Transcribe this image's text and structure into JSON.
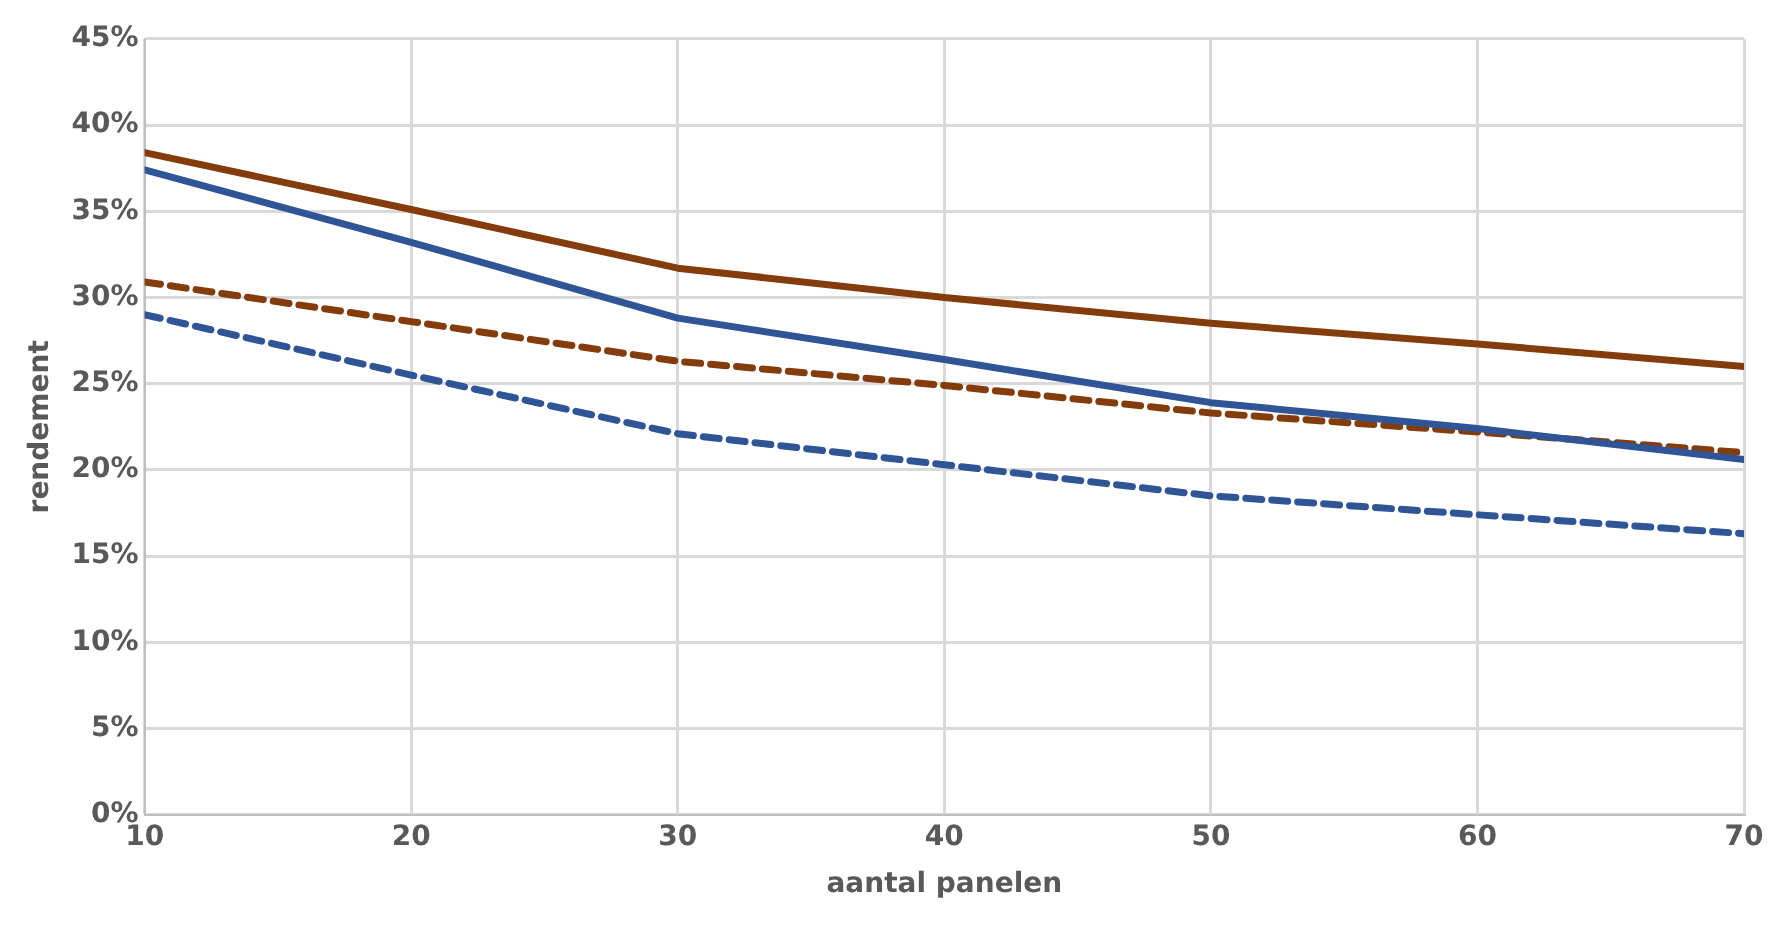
{
  "chart_data": {
    "type": "line",
    "xlabel": "aantal panelen",
    "ylabel": "rendement",
    "x": [
      10,
      20,
      30,
      40,
      50,
      60,
      70
    ],
    "series": [
      {
        "color": "#843c0c",
        "line_style": "solid",
        "values": [
          38.4,
          35.1,
          31.7,
          30.0,
          28.5,
          27.3,
          26.0
        ]
      },
      {
        "color": "#2f5597",
        "line_style": "solid",
        "values": [
          37.4,
          33.2,
          28.8,
          26.4,
          23.9,
          22.4,
          20.6
        ]
      },
      {
        "color": "#843c0c",
        "line_style": "dashed",
        "values": [
          30.9,
          28.6,
          26.3,
          24.9,
          23.3,
          22.2,
          21.0
        ]
      },
      {
        "color": "#2f5597",
        "line_style": "dashed",
        "values": [
          29.0,
          25.5,
          22.1,
          20.3,
          18.5,
          17.4,
          16.3
        ]
      }
    ],
    "xlim": [
      10,
      70
    ],
    "xticks": [
      10,
      20,
      30,
      40,
      50,
      60,
      70
    ],
    "ylim": [
      0,
      45
    ],
    "yticks": [
      {
        "value": 0,
        "label": "0%"
      },
      {
        "value": 5,
        "label": "5%"
      },
      {
        "value": 10,
        "label": "10%"
      },
      {
        "value": 15,
        "label": "15%"
      },
      {
        "value": 20,
        "label": "20%"
      },
      {
        "value": 25,
        "label": "25%"
      },
      {
        "value": 30,
        "label": "30%"
      },
      {
        "value": 35,
        "label": "35%"
      },
      {
        "value": 40,
        "label": "40%"
      },
      {
        "value": 45,
        "label": "45%"
      }
    ],
    "grid": true,
    "legend": false,
    "marker": "none"
  }
}
